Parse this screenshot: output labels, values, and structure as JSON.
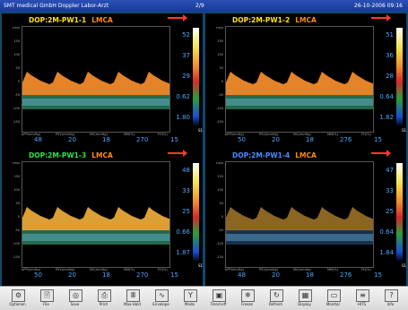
{
  "titlebar": {
    "app": "SMT medical GmbH Doppler Labor-Arzt",
    "page": "2/9",
    "datetime": "26-10-2006 09:16"
  },
  "yaxis_labels": [
    "cm/s",
    "150",
    "100",
    "50",
    "0",
    "-50",
    "-100",
    "-150"
  ],
  "foot_labels": [
    "ΔPP(mmHg)",
    "PSV(mmHg)",
    "MV(mmHg)",
    "MM(%)",
    "FH(%)"
  ],
  "panels": [
    {
      "probe": "DOP:2M-PW1-1",
      "probe_color": "#ffe21a",
      "vessel": "LMCA",
      "values": [
        "52",
        "37",
        "29",
        "0.62",
        "1.80"
      ],
      "foot": [
        "48",
        "20",
        "18",
        "270",
        "15"
      ]
    },
    {
      "probe": "DOP:2M-PW1-2",
      "probe_color": "#ffe21a",
      "vessel": "LMCA",
      "values": [
        "51",
        "36",
        "28",
        "0.64",
        "1.82"
      ],
      "foot": [
        "50",
        "20",
        "18",
        "276",
        "15"
      ]
    },
    {
      "probe": "DOP:2M-PW1-3",
      "probe_color": "#33e14a",
      "vessel": "LMCA",
      "values": [
        "48",
        "33",
        "25",
        "0.66",
        "1.87"
      ],
      "foot": [
        "50",
        "20",
        "18",
        "270",
        "15"
      ]
    },
    {
      "probe": "DOP:2M-PW1-4",
      "probe_color": "#4a8cff",
      "vessel": "LMCA",
      "values": [
        "47",
        "33",
        "25",
        "0.64",
        "1.84"
      ],
      "foot": [
        "48",
        "20",
        "18",
        "276",
        "15"
      ]
    }
  ],
  "colorbar_label": "S1",
  "toolbar": [
    {
      "label": "Optionen",
      "icon": "options-icon"
    },
    {
      "label": "File",
      "icon": "file-icon"
    },
    {
      "label": "Save",
      "icon": "save-icon"
    },
    {
      "label": "Print",
      "icon": "print-icon"
    },
    {
      "label": "Max-Hold",
      "icon": "maxhold-icon"
    },
    {
      "label": "Envelope",
      "icon": "envelope-icon"
    },
    {
      "label": "Mode",
      "icon": "mode-icon"
    },
    {
      "label": "Trend-off",
      "icon": "trend-icon"
    },
    {
      "label": "Freeze",
      "icon": "freeze-icon"
    },
    {
      "label": "Refresh",
      "icon": "refresh-icon"
    },
    {
      "label": "Display",
      "icon": "display-icon"
    },
    {
      "label": "Monitor",
      "icon": "monitor-icon"
    },
    {
      "label": "HITS",
      "icon": "hits-icon"
    },
    {
      "label": "Info",
      "icon": "info-icon"
    }
  ]
}
